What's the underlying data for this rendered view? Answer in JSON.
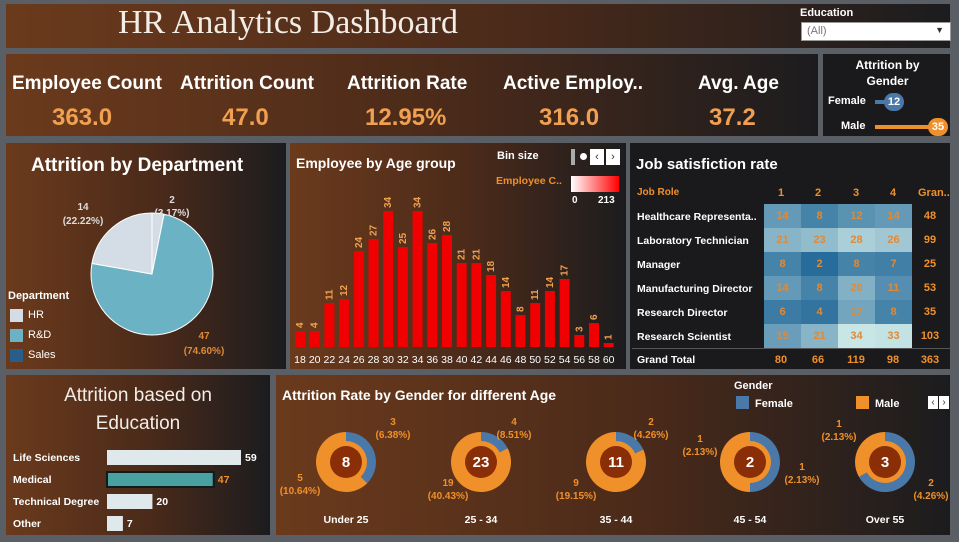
{
  "header": {
    "title": "HR Analytics Dashboard"
  },
  "filter": {
    "label": "Education",
    "value": "(All)"
  },
  "kpis": [
    {
      "label": "Employee Count",
      "value": "363.0"
    },
    {
      "label": "Attrition Count",
      "value": "47.0"
    },
    {
      "label": "Attrition Rate",
      "value": "12.95%"
    },
    {
      "label": "Active Employ..",
      "value": "316.0"
    },
    {
      "label": "Avg. Age",
      "value": "37.2"
    }
  ],
  "attrition_by_gender": {
    "title": "Attrition by Gender",
    "rows": [
      {
        "label": "Female",
        "value": "12",
        "fraction": 0.343
      },
      {
        "label": "Male",
        "value": "35",
        "fraction": 1.0
      }
    ]
  },
  "department": {
    "title": "Attrition by Department",
    "legend_title": "Department",
    "colors": {
      "HR": "#d4dde6",
      "R&D": "#6bb3c4",
      "Sales": "#2a5d8a"
    }
  },
  "age_group": {
    "title": "Employee by Age group",
    "bin_label": "Bin size",
    "legend_label": "Employee C..",
    "legend_min": "0",
    "legend_max": "213"
  },
  "job_satisfaction": {
    "title": "Job satisfiction rate",
    "col_header": "Job Role",
    "columns": [
      "1",
      "2",
      "3",
      "4",
      "Gran.."
    ],
    "rows": [
      {
        "role": "Healthcare Representa..",
        "values": [
          "14",
          "8",
          "12",
          "14"
        ],
        "total": "48"
      },
      {
        "role": "Laboratory Technician",
        "values": [
          "21",
          "23",
          "28",
          "26"
        ],
        "total": "99"
      },
      {
        "role": "Manager",
        "values": [
          "8",
          "2",
          "8",
          "7"
        ],
        "total": "25"
      },
      {
        "role": "Manufacturing Director",
        "values": [
          "14",
          "8",
          "20",
          "11"
        ],
        "total": "53"
      },
      {
        "role": "Research Director",
        "values": [
          "6",
          "4",
          "17",
          "8"
        ],
        "total": "35"
      },
      {
        "role": "Research Scientist",
        "values": [
          "15",
          "21",
          "34",
          "33"
        ],
        "total": "103"
      }
    ],
    "grand_total": {
      "label": "Grand Total",
      "values": [
        "80",
        "66",
        "119",
        "98"
      ],
      "total": "363"
    }
  },
  "education": {
    "title_line1": "Attrition based on",
    "title_line2": "Education"
  },
  "gender_age": {
    "title": "Attrition Rate by Gender  for different Age",
    "legend_title": "Gender",
    "legend": [
      {
        "label": "Female",
        "color": "#4a78a8"
      },
      {
        "label": "Male",
        "color": "#f0902a"
      }
    ]
  },
  "chart_data": [
    {
      "type": "pie",
      "title": "Attrition by Department",
      "slices": [
        {
          "name": "HR",
          "value": 2,
          "label": "2",
          "pct": "(3.17%)"
        },
        {
          "name": "R&D",
          "value": 47,
          "label": "47",
          "pct": "(74.60%)"
        },
        {
          "name": "Sales",
          "value": 14,
          "label": "14",
          "pct": "(22.22%)"
        }
      ]
    },
    {
      "type": "bar",
      "title": "Employee by Age group",
      "categories": [
        "18",
        "20",
        "22",
        "24",
        "26",
        "28",
        "30",
        "32",
        "34",
        "36",
        "38",
        "40",
        "42",
        "44",
        "46",
        "48",
        "50",
        "52",
        "54",
        "56",
        "58",
        "60"
      ],
      "values": [
        4,
        4,
        11,
        12,
        24,
        27,
        34,
        25,
        34,
        26,
        28,
        21,
        21,
        18,
        14,
        8,
        11,
        14,
        17,
        3,
        6,
        1
      ],
      "ylim": [
        0,
        34
      ]
    },
    {
      "type": "bar",
      "orientation": "horizontal",
      "title": "Attrition based on Education",
      "categories": [
        "Life Sciences",
        "Medical",
        "Technical Degree",
        "Other"
      ],
      "values": [
        59,
        47,
        20,
        7
      ]
    },
    {
      "type": "pie",
      "title": "Attrition Rate by Gender  for different Age",
      "groups": [
        {
          "name": "Under 25",
          "total": "8",
          "female": {
            "value": 3,
            "label": "3",
            "pct": "(6.38%)"
          },
          "male": {
            "value": 5,
            "label": "5",
            "pct": "(10.64%)"
          }
        },
        {
          "name": "25 - 34",
          "total": "23",
          "female": {
            "value": 4,
            "label": "4",
            "pct": "(8.51%)"
          },
          "male": {
            "value": 19,
            "label": "19",
            "pct": "(40.43%)"
          }
        },
        {
          "name": "35 - 44",
          "total": "11",
          "female": {
            "value": 2,
            "label": "2",
            "pct": "(4.26%)"
          },
          "male": {
            "value": 9,
            "label": "9",
            "pct": "(19.15%)"
          }
        },
        {
          "name": "45 - 54",
          "total": "2",
          "female": {
            "value": 1,
            "label": "1",
            "pct": "(2.13%)"
          },
          "male": {
            "value": 1,
            "label": "1",
            "pct": "(2.13%)"
          }
        },
        {
          "name": "Over 55",
          "total": "3",
          "female": {
            "value": 2,
            "label": "2",
            "pct": "(4.26%)"
          },
          "male": {
            "value": 1,
            "label": "1",
            "pct": "(2.13%)"
          }
        }
      ]
    }
  ]
}
